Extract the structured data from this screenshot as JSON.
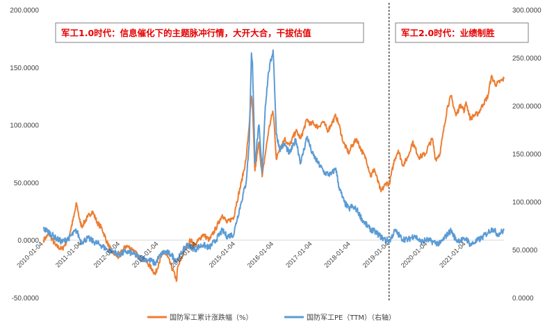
{
  "chart_data": {
    "type": "line",
    "title": "",
    "xlabel": "",
    "ylabel": "",
    "x_ticks": [
      "2010-01-04",
      "2011-01-04",
      "2012-01-04",
      "2013-01-04",
      "2014-01-04",
      "2015-01-04",
      "2016-01-04",
      "2017-01-04",
      "2018-01-04",
      "2019-01-04",
      "2020-01-04",
      "2021-01-04"
    ],
    "x_range": [
      "2010-01-01",
      "2021-12-31"
    ],
    "y_left": {
      "ticks": [
        "200.0000",
        "150.0000",
        "100.0000",
        "50.0000",
        "0.0000",
        "-50.0000"
      ],
      "range": [
        -50,
        200
      ]
    },
    "y_right": {
      "ticks": [
        "300.0000",
        "250.0000",
        "200.0000",
        "150.0000",
        "100.0000",
        "50.0000",
        "0.0000"
      ],
      "range": [
        0,
        300
      ]
    },
    "grid": false,
    "legend_position": "bottom",
    "colors": {
      "cum": "#ed7d31",
      "pe": "#5b9bd5",
      "annotation": "#e60000"
    },
    "series": [
      {
        "name": "国防军工累计涨跌幅（%）",
        "axis": "left",
        "points": [
          [
            "2010-01-04",
            0
          ],
          [
            "2010-03-01",
            5
          ],
          [
            "2010-05-01",
            -5
          ],
          [
            "2010-07-01",
            -8
          ],
          [
            "2010-09-01",
            2
          ],
          [
            "2010-10-20",
            20
          ],
          [
            "2010-11-15",
            32
          ],
          [
            "2010-12-20",
            15
          ],
          [
            "2011-01-04",
            12
          ],
          [
            "2011-03-01",
            20
          ],
          [
            "2011-04-15",
            25
          ],
          [
            "2011-06-01",
            15
          ],
          [
            "2011-07-15",
            10
          ],
          [
            "2011-09-01",
            -2
          ],
          [
            "2011-10-15",
            -10
          ],
          [
            "2011-12-20",
            -15
          ],
          [
            "2012-01-04",
            -12
          ],
          [
            "2012-03-01",
            -5
          ],
          [
            "2012-05-01",
            -8
          ],
          [
            "2012-07-01",
            -15
          ],
          [
            "2012-09-01",
            -18
          ],
          [
            "2012-11-01",
            -25
          ],
          [
            "2012-12-03",
            -30
          ],
          [
            "2013-01-04",
            -20
          ],
          [
            "2013-02-15",
            -10
          ],
          [
            "2013-04-01",
            -15
          ],
          [
            "2013-06-25",
            -35
          ],
          [
            "2013-07-01",
            -25
          ],
          [
            "2013-09-01",
            -10
          ],
          [
            "2013-11-01",
            0
          ],
          [
            "2013-12-20",
            -5
          ],
          [
            "2014-01-04",
            -2
          ],
          [
            "2014-03-01",
            5
          ],
          [
            "2014-05-01",
            0
          ],
          [
            "2014-07-01",
            10
          ],
          [
            "2014-09-01",
            22
          ],
          [
            "2014-10-15",
            15
          ],
          [
            "2014-12-20",
            20
          ],
          [
            "2015-01-04",
            28
          ],
          [
            "2015-03-01",
            50
          ],
          [
            "2015-04-15",
            70
          ],
          [
            "2015-05-10",
            95
          ],
          [
            "2015-06-05",
            125
          ],
          [
            "2015-06-15",
            115
          ],
          [
            "2015-07-08",
            60
          ],
          [
            "2015-08-15",
            85
          ],
          [
            "2015-09-15",
            55
          ],
          [
            "2015-10-15",
            75
          ],
          [
            "2015-11-15",
            95
          ],
          [
            "2015-12-25",
            112
          ],
          [
            "2016-01-04",
            105
          ],
          [
            "2016-01-28",
            70
          ],
          [
            "2016-03-01",
            80
          ],
          [
            "2016-04-15",
            88
          ],
          [
            "2016-06-01",
            82
          ],
          [
            "2016-08-01",
            95
          ],
          [
            "2016-09-15",
            88
          ],
          [
            "2016-11-15",
            105
          ],
          [
            "2016-12-20",
            100
          ],
          [
            "2017-01-04",
            102
          ],
          [
            "2017-03-01",
            98
          ],
          [
            "2017-04-15",
            103
          ],
          [
            "2017-06-01",
            95
          ],
          [
            "2017-08-15",
            108
          ],
          [
            "2017-09-15",
            100
          ],
          [
            "2017-10-25",
            85
          ],
          [
            "2017-12-20",
            75
          ],
          [
            "2018-01-04",
            80
          ],
          [
            "2018-03-01",
            88
          ],
          [
            "2018-04-15",
            78
          ],
          [
            "2018-06-01",
            70
          ],
          [
            "2018-07-15",
            55
          ],
          [
            "2018-08-15",
            62
          ],
          [
            "2018-10-18",
            42
          ],
          [
            "2018-12-10",
            50
          ],
          [
            "2019-01-04",
            48
          ],
          [
            "2019-02-25",
            70
          ],
          [
            "2019-04-01",
            78
          ],
          [
            "2019-05-15",
            65
          ],
          [
            "2019-07-01",
            72
          ],
          [
            "2019-08-15",
            85
          ],
          [
            "2019-10-15",
            72
          ],
          [
            "2019-12-20",
            75
          ],
          [
            "2020-01-04",
            80
          ],
          [
            "2020-02-20",
            88
          ],
          [
            "2020-03-20",
            70
          ],
          [
            "2020-05-01",
            75
          ],
          [
            "2020-07-10",
            115
          ],
          [
            "2020-08-15",
            125
          ],
          [
            "2020-10-01",
            108
          ],
          [
            "2020-11-15",
            118
          ],
          [
            "2020-12-20",
            112
          ],
          [
            "2021-01-04",
            120
          ],
          [
            "2021-02-15",
            105
          ],
          [
            "2021-03-15",
            108
          ],
          [
            "2021-05-01",
            110
          ],
          [
            "2021-06-15",
            118
          ],
          [
            "2021-08-01",
            125
          ],
          [
            "2021-09-01",
            142
          ],
          [
            "2021-10-15",
            135
          ],
          [
            "2021-12-31",
            140
          ]
        ]
      },
      {
        "name": "国防军工PE（TTM）（右轴）",
        "axis": "right",
        "points": [
          [
            "2010-01-04",
            72
          ],
          [
            "2010-03-01",
            68
          ],
          [
            "2010-05-01",
            62
          ],
          [
            "2010-07-01",
            58
          ],
          [
            "2010-09-01",
            62
          ],
          [
            "2010-11-15",
            70
          ],
          [
            "2010-12-20",
            60
          ],
          [
            "2011-01-04",
            58
          ],
          [
            "2011-03-01",
            62
          ],
          [
            "2011-05-01",
            58
          ],
          [
            "2011-07-01",
            55
          ],
          [
            "2011-09-01",
            50
          ],
          [
            "2011-11-01",
            48
          ],
          [
            "2011-12-20",
            45
          ],
          [
            "2012-01-04",
            45
          ],
          [
            "2012-03-01",
            48
          ],
          [
            "2012-05-01",
            46
          ],
          [
            "2012-07-01",
            42
          ],
          [
            "2012-09-01",
            40
          ],
          [
            "2012-11-01",
            38
          ],
          [
            "2012-12-03",
            35
          ],
          [
            "2013-01-04",
            42
          ],
          [
            "2013-03-01",
            48
          ],
          [
            "2013-05-01",
            45
          ],
          [
            "2013-06-25",
            38
          ],
          [
            "2013-08-01",
            45
          ],
          [
            "2013-10-01",
            55
          ],
          [
            "2013-12-20",
            50
          ],
          [
            "2014-01-04",
            52
          ],
          [
            "2014-03-01",
            55
          ],
          [
            "2014-05-01",
            52
          ],
          [
            "2014-07-01",
            60
          ],
          [
            "2014-09-01",
            70
          ],
          [
            "2014-10-15",
            64
          ],
          [
            "2014-12-20",
            66
          ],
          [
            "2015-01-04",
            75
          ],
          [
            "2015-03-01",
            100
          ],
          [
            "2015-04-15",
            120
          ],
          [
            "2015-05-15",
            160
          ],
          [
            "2015-06-05",
            255
          ],
          [
            "2015-06-15",
            245
          ],
          [
            "2015-07-08",
            140
          ],
          [
            "2015-08-15",
            180
          ],
          [
            "2015-09-15",
            130
          ],
          [
            "2015-10-15",
            200
          ],
          [
            "2015-11-15",
            235
          ],
          [
            "2015-12-28",
            258
          ],
          [
            "2016-01-04",
            240
          ],
          [
            "2016-01-28",
            170
          ],
          [
            "2016-03-01",
            155
          ],
          [
            "2016-04-15",
            160
          ],
          [
            "2016-06-01",
            150
          ],
          [
            "2016-08-01",
            165
          ],
          [
            "2016-09-15",
            140
          ],
          [
            "2016-11-15",
            168
          ],
          [
            "2016-12-20",
            155
          ],
          [
            "2017-01-04",
            150
          ],
          [
            "2017-03-01",
            140
          ],
          [
            "2017-05-01",
            130
          ],
          [
            "2017-07-01",
            128
          ],
          [
            "2017-08-15",
            135
          ],
          [
            "2017-09-15",
            115
          ],
          [
            "2017-11-01",
            100
          ],
          [
            "2017-12-20",
            92
          ],
          [
            "2018-01-04",
            95
          ],
          [
            "2018-03-01",
            92
          ],
          [
            "2018-05-01",
            80
          ],
          [
            "2018-07-01",
            72
          ],
          [
            "2018-09-01",
            68
          ],
          [
            "2018-11-01",
            62
          ],
          [
            "2018-12-20",
            60
          ],
          [
            "2019-01-04",
            58
          ],
          [
            "2019-03-01",
            70
          ],
          [
            "2019-05-01",
            62
          ],
          [
            "2019-07-01",
            60
          ],
          [
            "2019-09-01",
            65
          ],
          [
            "2019-11-01",
            58
          ],
          [
            "2019-12-20",
            60
          ],
          [
            "2020-01-04",
            60
          ],
          [
            "2020-03-01",
            58
          ],
          [
            "2020-05-01",
            56
          ],
          [
            "2020-07-10",
            66
          ],
          [
            "2020-08-15",
            70
          ],
          [
            "2020-10-01",
            60
          ],
          [
            "2020-12-20",
            60
          ],
          [
            "2021-01-04",
            62
          ],
          [
            "2021-02-15",
            55
          ],
          [
            "2021-04-01",
            58
          ],
          [
            "2021-06-01",
            62
          ],
          [
            "2021-08-01",
            68
          ],
          [
            "2021-09-15",
            72
          ],
          [
            "2021-11-01",
            66
          ],
          [
            "2021-12-31",
            70
          ]
        ]
      }
    ],
    "annotations": [
      {
        "text": "军工1.0时代：信息催化下的主题脉冲行情，大开大合，干拔估值",
        "span": [
          "2010-01-04",
          "2019-01-04"
        ]
      },
      {
        "text": "军工2.0时代：业绩制胜",
        "span": [
          "2019-01-04",
          "2021-12-31"
        ]
      }
    ],
    "divider_date": "2019-01-04"
  }
}
